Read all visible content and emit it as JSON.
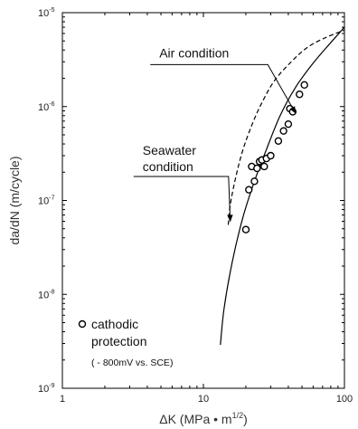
{
  "chart_data": {
    "type": "scatter",
    "title": "",
    "xlabel": "ΔK (MPa • m1/2)",
    "xlabel_parts": {
      "main": "ΔK (MPa • m",
      "sup": "1/2",
      "close": ")"
    },
    "ylabel": "da/dN (m/cycle)",
    "x_scale": "log",
    "y_scale": "log",
    "xlim": [
      1,
      100
    ],
    "ylim": [
      1e-09,
      1e-05
    ],
    "x_ticks": [
      {
        "value": 1,
        "label": "1"
      },
      {
        "value": 10,
        "label": "10"
      },
      {
        "value": 100,
        "label": "100"
      }
    ],
    "y_ticks": [
      {
        "value": 1e-09,
        "base": "10",
        "exp": "-9"
      },
      {
        "value": 1e-08,
        "base": "10",
        "exp": "-8"
      },
      {
        "value": 1e-07,
        "base": "10",
        "exp": "-7"
      },
      {
        "value": 1e-06,
        "base": "10",
        "exp": "-6"
      },
      {
        "value": 1e-05,
        "base": "10",
        "exp": "-5"
      }
    ],
    "grid": false,
    "series": [
      {
        "style": "solid",
        "kind": "line",
        "points": [
          [
            13.2,
            2.9e-09
          ],
          [
            14,
            7e-09
          ],
          [
            16,
            2.2e-08
          ],
          [
            19,
            6.5e-08
          ],
          [
            23,
            1.6e-07
          ],
          [
            28,
            3.5e-07
          ],
          [
            35,
            8e-07
          ],
          [
            45,
            1.6e-06
          ],
          [
            60,
            2.9e-06
          ],
          [
            80,
            4.8e-06
          ],
          [
            100,
            7e-06
          ]
        ]
      },
      {
        "style": "dashed",
        "kind": "line",
        "points": [
          [
            15,
            5.5e-08
          ],
          [
            15.5,
            9e-08
          ],
          [
            17,
            1.8e-07
          ],
          [
            19,
            3.4e-07
          ],
          [
            22,
            6.3e-07
          ],
          [
            26,
            1.1e-06
          ],
          [
            32,
            1.9e-06
          ],
          [
            42,
            3e-06
          ],
          [
            55,
            4.3e-06
          ],
          [
            75,
            5.5e-06
          ],
          [
            100,
            6.5e-06
          ]
        ]
      },
      {
        "kind": "scatter",
        "marker": "open-circle",
        "points": [
          [
            20,
            4.9e-08
          ],
          [
            21,
            1.3e-07
          ],
          [
            22,
            2.3e-07
          ],
          [
            23,
            1.6e-07
          ],
          [
            24,
            2.2e-07
          ],
          [
            25,
            2.6e-07
          ],
          [
            26,
            2.7e-07
          ],
          [
            27,
            2.3e-07
          ],
          [
            28,
            2.8e-07
          ],
          [
            30,
            3e-07
          ],
          [
            34,
            4.3e-07
          ],
          [
            37,
            5.5e-07
          ],
          [
            40,
            6.5e-07
          ],
          [
            41,
            9.5e-07
          ],
          [
            43,
            8.8e-07
          ],
          [
            48,
            1.35e-06
          ],
          [
            52,
            1.7e-06
          ]
        ]
      }
    ],
    "annotations": [
      {
        "text": "Air condition",
        "line_start": [
          4.2,
          2.8e-06
        ],
        "arrow_end": [
          45,
          8.5e-07
        ]
      },
      {
        "text_lines": [
          "Seawater",
          "condition"
        ],
        "line_start": [
          3.2,
          1.8e-07
        ],
        "arrow_end": [
          15.5,
          6e-08
        ]
      }
    ],
    "legend": {
      "marker": "open-circle",
      "lines": [
        "cathodic",
        "protection"
      ],
      "note": "( - 800mV vs. SCE)",
      "position": "bottom-left"
    }
  }
}
